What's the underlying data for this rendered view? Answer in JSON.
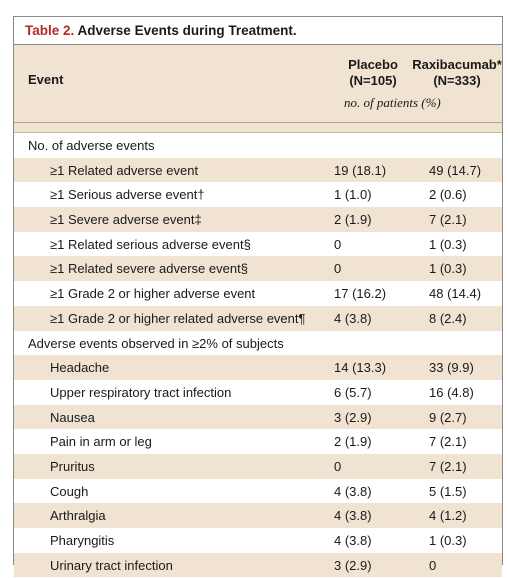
{
  "table": {
    "label": "Table 2.",
    "title": "Adverse Events during Treatment.",
    "event_header": "Event",
    "col1_name": "Placebo",
    "col1_n": "(N=105)",
    "col2_name": "Raxibacumab*",
    "col2_n": "(N=333)",
    "units": "no. of patients (%)",
    "rows": [
      {
        "event": "No. of adverse events",
        "type": "section",
        "placebo": "",
        "raxibacumab": ""
      },
      {
        "event": "≥1 Related adverse event",
        "type": "item",
        "placebo": "19 (18.1)",
        "raxibacumab": "49 (14.7)"
      },
      {
        "event": "≥1 Serious adverse event†",
        "type": "item",
        "placebo": "1 (1.0)",
        "raxibacumab": "2 (0.6)"
      },
      {
        "event": "≥1 Severe adverse event‡",
        "type": "item",
        "placebo": "2 (1.9)",
        "raxibacumab": "7 (2.1)"
      },
      {
        "event": "≥1 Related serious adverse event§",
        "type": "item",
        "placebo": "0",
        "raxibacumab": "1 (0.3)"
      },
      {
        "event": "≥1 Related severe adverse event§",
        "type": "item",
        "placebo": "0",
        "raxibacumab": "1 (0.3)"
      },
      {
        "event": "≥1 Grade 2 or higher adverse event",
        "type": "item",
        "placebo": "17 (16.2)",
        "raxibacumab": "48 (14.4)"
      },
      {
        "event": "≥1 Grade 2 or higher related adverse event¶",
        "type": "item",
        "placebo": "4 (3.8)",
        "raxibacumab": "8 (2.4)"
      },
      {
        "event": "Adverse events observed in ≥2% of subjects",
        "type": "section",
        "placebo": "",
        "raxibacumab": ""
      },
      {
        "event": "Headache",
        "type": "item",
        "placebo": "14 (13.3)",
        "raxibacumab": "33 (9.9)"
      },
      {
        "event": "Upper respiratory tract infection",
        "type": "item",
        "placebo": "6 (5.7)",
        "raxibacumab": "16 (4.8)"
      },
      {
        "event": "Nausea",
        "type": "item",
        "placebo": "3 (2.9)",
        "raxibacumab": "9 (2.7)"
      },
      {
        "event": "Pain in arm or leg",
        "type": "item",
        "placebo": "2 (1.9)",
        "raxibacumab": "7 (2.1)"
      },
      {
        "event": "Pruritus",
        "type": "item",
        "placebo": "0",
        "raxibacumab": "7 (2.1)"
      },
      {
        "event": "Cough",
        "type": "item",
        "placebo": "4 (3.8)",
        "raxibacumab": "5 (1.5)"
      },
      {
        "event": "Arthralgia",
        "type": "item",
        "placebo": "4 (3.8)",
        "raxibacumab": "4 (1.2)"
      },
      {
        "event": "Pharyngitis",
        "type": "item",
        "placebo": "4 (3.8)",
        "raxibacumab": "1 (0.3)"
      },
      {
        "event": "Urinary tract infection",
        "type": "item",
        "placebo": "3 (2.9)",
        "raxibacumab": "0"
      }
    ]
  }
}
